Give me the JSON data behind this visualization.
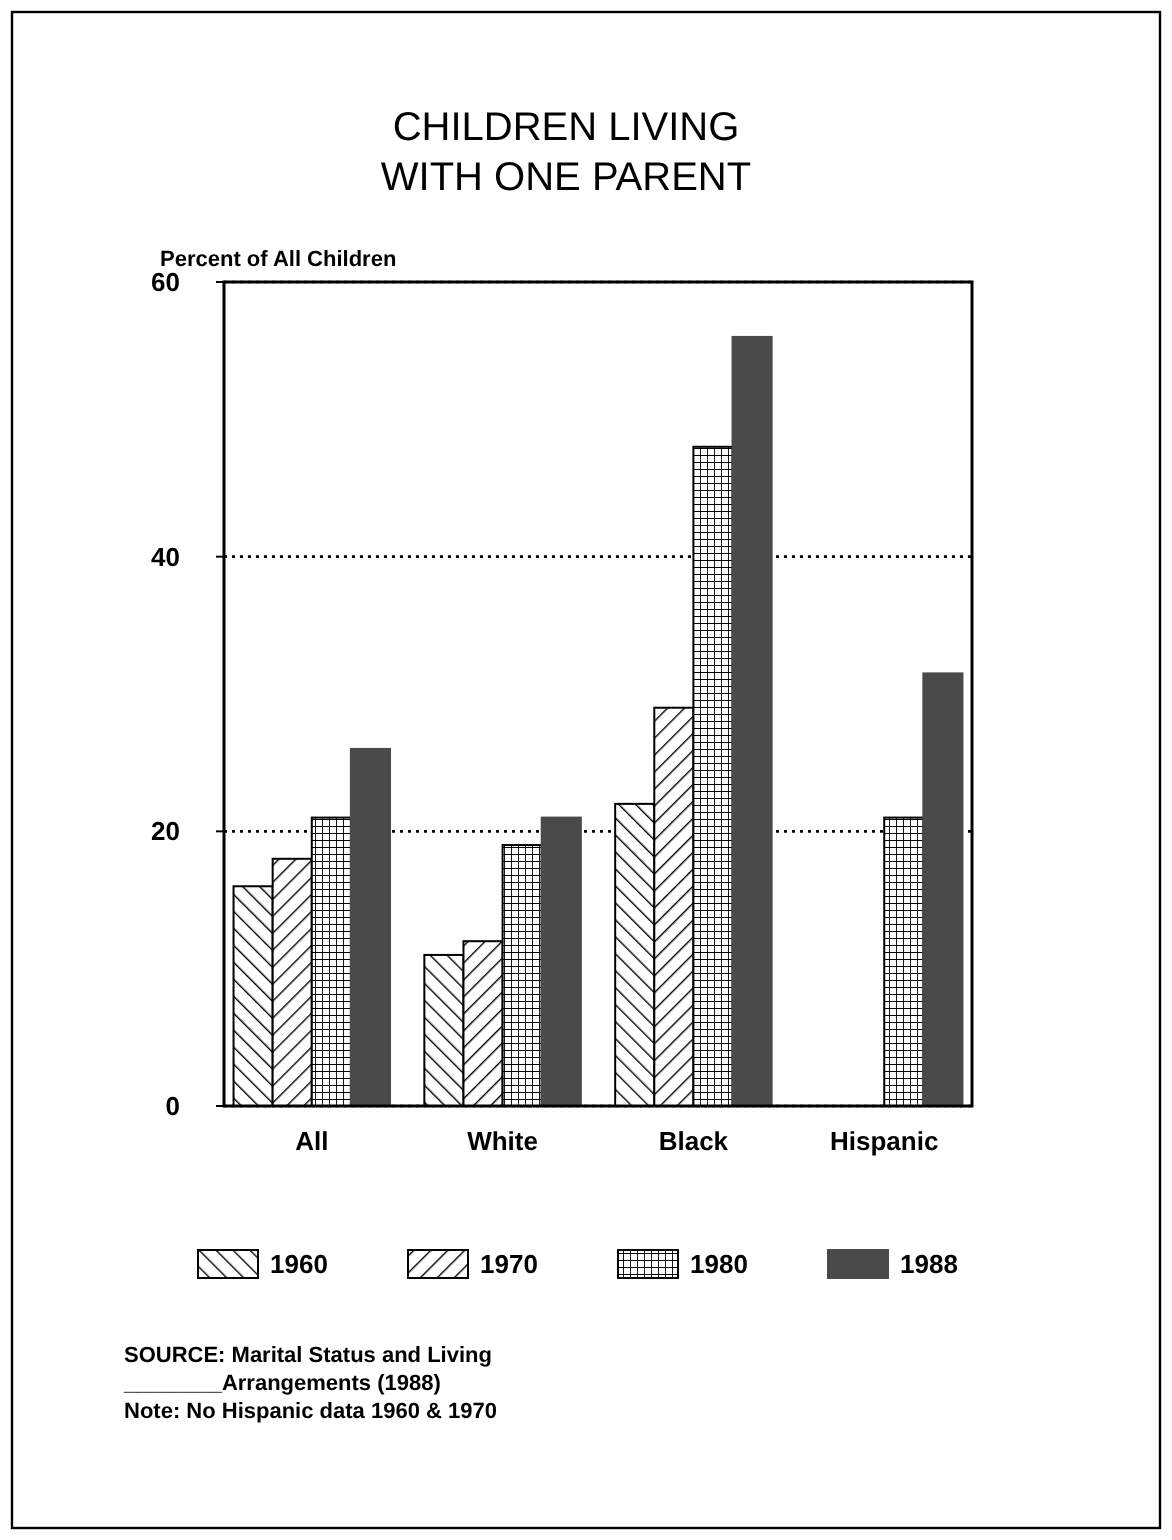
{
  "chart_data": {
    "type": "bar",
    "title": "CHILDREN LIVING\nWITH ONE PARENT",
    "ylabel": "Percent of All Children",
    "categories": [
      "All",
      "White",
      "Black",
      "Hispanic"
    ],
    "series": [
      {
        "name": "1960",
        "color": "#000000",
        "values": [
          16,
          11,
          22,
          null
        ]
      },
      {
        "name": "1970",
        "color": "#000000",
        "values": [
          18,
          12,
          29,
          null
        ]
      },
      {
        "name": "1980",
        "color": "#000000",
        "values": [
          21,
          19,
          48,
          21
        ]
      },
      {
        "name": "1988",
        "color": "#4a4a4a",
        "values": [
          26,
          21,
          56,
          31.5
        ]
      }
    ],
    "ylim": [
      0,
      60
    ],
    "yticks": [
      0,
      20,
      40,
      60
    ],
    "grid": "y",
    "legend": "bottom",
    "annotations": [
      "SOURCE: Marital Status and Living",
      "________Arrangements (1988)",
      "Note: No Hispanic data 1960 & 1970"
    ]
  }
}
